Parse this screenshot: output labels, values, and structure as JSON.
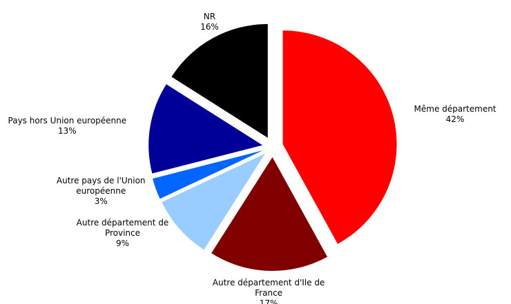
{
  "chart_data": {
    "type": "pie",
    "categories": [
      "Même département",
      "Autre département d'Ile de France",
      "Autre département de Province",
      "Autre pays de l'Union européenne",
      "Pays hors Union européenne",
      "NR"
    ],
    "values": [
      42,
      17,
      9,
      3,
      13,
      16
    ],
    "value_labels": [
      "42%",
      "17%",
      "9%",
      "3%",
      "13%",
      "16%"
    ],
    "colors": [
      "#ff0000",
      "#800000",
      "#99ccff",
      "#0066ff",
      "#000099",
      "#000000"
    ]
  }
}
